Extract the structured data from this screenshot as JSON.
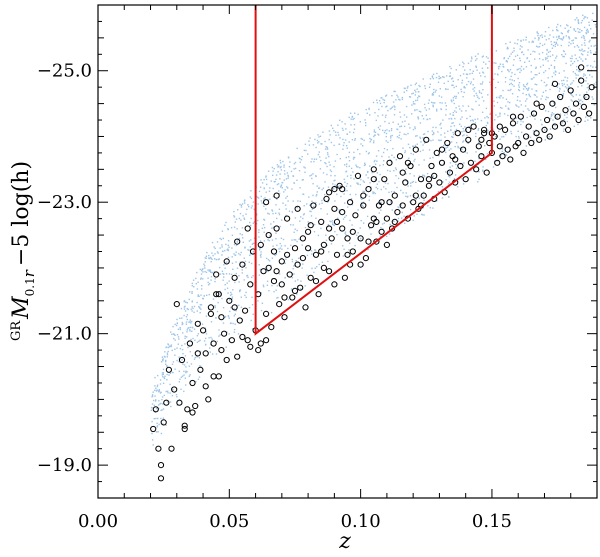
{
  "chart_data": {
    "type": "scatter",
    "xlabel": "z",
    "ylabel": {
      "prefix": "GR",
      "main": "M",
      "subscript": "0.1",
      "subscript_var": "r",
      "suffix": "−5 log(h)"
    },
    "xlim": [
      0.0,
      0.19
    ],
    "ylim": [
      -18.5,
      -26.0
    ],
    "y_inverted": true,
    "x_ticks": [
      0.0,
      0.05,
      0.1,
      0.15
    ],
    "x_tick_labels": [
      "0.00",
      "0.05",
      "0.10",
      "0.15"
    ],
    "y_ticks": [
      -25.0,
      -23.0,
      -21.0,
      -19.0
    ],
    "y_tick_labels": [
      "−25.0",
      "−23.0",
      "−21.0",
      "−19.0"
    ],
    "grid": false,
    "background_sample": {
      "description_color": "#9ec5e8",
      "envelope_z": [
        0.02,
        0.03,
        0.04,
        0.05,
        0.06,
        0.07,
        0.08,
        0.09,
        0.1,
        0.11,
        0.12,
        0.13,
        0.14,
        0.15,
        0.16,
        0.17,
        0.18,
        0.19
      ],
      "faint_limit": [
        -19.2,
        -19.9,
        -20.4,
        -20.8,
        -21.1,
        -21.4,
        -21.7,
        -21.95,
        -22.2,
        -22.45,
        -22.7,
        -22.95,
        -23.2,
        -23.45,
        -23.7,
        -23.9,
        -24.1,
        -24.3
      ],
      "bright_limit": [
        -20.3,
        -21.3,
        -22.2,
        -22.8,
        -23.3,
        -23.7,
        -24.0,
        -24.25,
        -24.45,
        -24.65,
        -24.85,
        -25.0,
        -25.2,
        -25.35,
        -25.5,
        -25.65,
        -25.8,
        -25.95
      ]
    },
    "selection_boundary": {
      "color": "#e01010",
      "points": [
        {
          "z": 0.06,
          "mag": -26.0
        },
        {
          "z": 0.06,
          "mag": -21.0
        },
        {
          "z": 0.15,
          "mag": -23.75
        },
        {
          "z": 0.15,
          "mag": -26.0
        }
      ]
    },
    "galaxy_sample_points": [
      [
        0.021,
        -19.55
      ],
      [
        0.022,
        -19.85
      ],
      [
        0.023,
        -19.25
      ],
      [
        0.024,
        -18.8
      ],
      [
        0.024,
        -19.0
      ],
      [
        0.025,
        -19.65
      ],
      [
        0.026,
        -19.95
      ],
      [
        0.027,
        -20.45
      ],
      [
        0.028,
        -19.25
      ],
      [
        0.029,
        -20.15
      ],
      [
        0.03,
        -21.45
      ],
      [
        0.031,
        -19.95
      ],
      [
        0.032,
        -20.6
      ],
      [
        0.033,
        -19.55
      ],
      [
        0.034,
        -19.85
      ],
      [
        0.035,
        -20.85
      ],
      [
        0.036,
        -20.25
      ],
      [
        0.037,
        -19.9
      ],
      [
        0.038,
        -21.15
      ],
      [
        0.039,
        -20.45
      ],
      [
        0.04,
        -21.05
      ],
      [
        0.041,
        -20.7
      ],
      [
        0.042,
        -20.0
      ],
      [
        0.043,
        -21.4
      ],
      [
        0.044,
        -20.85
      ],
      [
        0.045,
        -21.6
      ],
      [
        0.046,
        -20.35
      ],
      [
        0.047,
        -21.25
      ],
      [
        0.048,
        -21.0
      ],
      [
        0.049,
        -20.6
      ],
      [
        0.05,
        -21.5
      ],
      [
        0.051,
        -20.9
      ],
      [
        0.052,
        -21.85
      ],
      [
        0.053,
        -20.65
      ],
      [
        0.054,
        -21.2
      ],
      [
        0.055,
        -22.05
      ],
      [
        0.056,
        -21.35
      ],
      [
        0.057,
        -20.9
      ],
      [
        0.058,
        -21.75
      ],
      [
        0.059,
        -22.25
      ],
      [
        0.06,
        -21.05
      ],
      [
        0.061,
        -21.6
      ],
      [
        0.062,
        -22.35
      ],
      [
        0.062,
        -20.85
      ],
      [
        0.063,
        -21.95
      ],
      [
        0.064,
        -21.3
      ],
      [
        0.065,
        -22.5
      ],
      [
        0.066,
        -21.1
      ],
      [
        0.067,
        -21.8
      ],
      [
        0.068,
        -22.6
      ],
      [
        0.069,
        -21.45
      ],
      [
        0.07,
        -22.1
      ],
      [
        0.071,
        -21.25
      ],
      [
        0.072,
        -22.75
      ],
      [
        0.073,
        -21.9
      ],
      [
        0.074,
        -21.55
      ],
      [
        0.075,
        -22.3
      ],
      [
        0.076,
        -22.9
      ],
      [
        0.077,
        -21.7
      ],
      [
        0.078,
        -22.15
      ],
      [
        0.079,
        -21.4
      ],
      [
        0.08,
        -22.55
      ],
      [
        0.081,
        -21.85
      ],
      [
        0.082,
        -22.95
      ],
      [
        0.083,
        -22.2
      ],
      [
        0.084,
        -21.6
      ],
      [
        0.085,
        -22.7
      ],
      [
        0.086,
        -22.0
      ],
      [
        0.087,
        -23.05
      ],
      [
        0.088,
        -21.95
      ],
      [
        0.089,
        -22.45
      ],
      [
        0.09,
        -22.9
      ],
      [
        0.091,
        -22.2
      ],
      [
        0.092,
        -23.25
      ],
      [
        0.093,
        -22.6
      ],
      [
        0.094,
        -21.85
      ],
      [
        0.095,
        -22.45
      ],
      [
        0.096,
        -23.0
      ],
      [
        0.097,
        -22.25
      ],
      [
        0.098,
        -22.8
      ],
      [
        0.099,
        -23.4
      ],
      [
        0.1,
        -22.45
      ],
      [
        0.101,
        -22.95
      ],
      [
        0.102,
        -22.15
      ],
      [
        0.103,
        -23.2
      ],
      [
        0.104,
        -22.65
      ],
      [
        0.105,
        -23.5
      ],
      [
        0.106,
        -22.4
      ],
      [
        0.107,
        -22.95
      ],
      [
        0.108,
        -22.55
      ],
      [
        0.109,
        -23.35
      ],
      [
        0.11,
        -22.75
      ],
      [
        0.111,
        -23.6
      ],
      [
        0.112,
        -22.6
      ],
      [
        0.113,
        -23.1
      ],
      [
        0.114,
        -22.85
      ],
      [
        0.115,
        -23.7
      ],
      [
        0.116,
        -22.95
      ],
      [
        0.117,
        -23.3
      ],
      [
        0.118,
        -22.75
      ],
      [
        0.119,
        -23.55
      ],
      [
        0.12,
        -23.0
      ],
      [
        0.121,
        -23.8
      ],
      [
        0.122,
        -22.9
      ],
      [
        0.123,
        -23.35
      ],
      [
        0.124,
        -23.1
      ],
      [
        0.125,
        -23.95
      ],
      [
        0.126,
        -23.25
      ],
      [
        0.127,
        -23.55
      ],
      [
        0.128,
        -23.05
      ],
      [
        0.129,
        -23.75
      ],
      [
        0.13,
        -23.3
      ],
      [
        0.131,
        -23.6
      ],
      [
        0.132,
        -23.15
      ],
      [
        0.133,
        -23.9
      ],
      [
        0.134,
        -23.45
      ],
      [
        0.135,
        -23.7
      ],
      [
        0.136,
        -23.3
      ],
      [
        0.137,
        -24.05
      ],
      [
        0.138,
        -23.55
      ],
      [
        0.139,
        -23.8
      ],
      [
        0.14,
        -23.35
      ],
      [
        0.141,
        -23.95
      ],
      [
        0.142,
        -23.6
      ],
      [
        0.143,
        -24.15
      ],
      [
        0.144,
        -23.5
      ],
      [
        0.145,
        -23.85
      ],
      [
        0.146,
        -23.7
      ],
      [
        0.147,
        -24.05
      ],
      [
        0.148,
        -23.45
      ],
      [
        0.149,
        -23.9
      ],
      [
        0.15,
        -23.75
      ],
      [
        0.151,
        -24.0
      ],
      [
        0.152,
        -23.6
      ],
      [
        0.153,
        -23.85
      ],
      [
        0.154,
        -23.7
      ],
      [
        0.155,
        -24.1
      ],
      [
        0.156,
        -23.8
      ],
      [
        0.157,
        -23.65
      ],
      [
        0.158,
        -24.2
      ],
      [
        0.159,
        -23.85
      ],
      [
        0.16,
        -23.9
      ],
      [
        0.161,
        -24.3
      ],
      [
        0.162,
        -23.75
      ],
      [
        0.163,
        -24.0
      ],
      [
        0.164,
        -24.15
      ],
      [
        0.165,
        -23.9
      ],
      [
        0.166,
        -24.35
      ],
      [
        0.167,
        -24.05
      ],
      [
        0.168,
        -23.95
      ],
      [
        0.169,
        -24.45
      ],
      [
        0.17,
        -24.1
      ],
      [
        0.171,
        -24.25
      ],
      [
        0.172,
        -24.0
      ],
      [
        0.173,
        -24.5
      ],
      [
        0.174,
        -24.15
      ],
      [
        0.175,
        -24.3
      ],
      [
        0.176,
        -24.6
      ],
      [
        0.177,
        -24.2
      ],
      [
        0.178,
        -24.4
      ],
      [
        0.179,
        -24.1
      ],
      [
        0.18,
        -24.7
      ],
      [
        0.181,
        -24.35
      ],
      [
        0.182,
        -24.5
      ],
      [
        0.183,
        -24.25
      ],
      [
        0.184,
        -24.85
      ],
      [
        0.185,
        -24.45
      ],
      [
        0.186,
        -24.6
      ],
      [
        0.187,
        -24.35
      ],
      [
        0.188,
        -24.75
      ],
      [
        0.065,
        -22.0
      ],
      [
        0.07,
        -21.75
      ],
      [
        0.075,
        -21.65
      ],
      [
        0.08,
        -22.3
      ],
      [
        0.085,
        -22.25
      ],
      [
        0.09,
        -21.75
      ],
      [
        0.095,
        -22.2
      ],
      [
        0.1,
        -22.05
      ],
      [
        0.105,
        -22.75
      ],
      [
        0.11,
        -22.35
      ],
      [
        0.068,
        -21.95
      ],
      [
        0.072,
        -22.2
      ],
      [
        0.078,
        -22.45
      ],
      [
        0.083,
        -21.8
      ],
      [
        0.088,
        -22.6
      ],
      [
        0.093,
        -22.85
      ],
      [
        0.097,
        -22.55
      ],
      [
        0.103,
        -22.4
      ],
      [
        0.108,
        -23.0
      ],
      [
        0.113,
        -22.7
      ],
      [
        0.067,
        -22.25
      ],
      [
        0.071,
        -21.55
      ],
      [
        0.076,
        -22.05
      ],
      [
        0.081,
        -22.65
      ],
      [
        0.086,
        -22.35
      ],
      [
        0.091,
        -22.7
      ],
      [
        0.096,
        -22.05
      ],
      [
        0.101,
        -23.1
      ],
      [
        0.106,
        -22.7
      ],
      [
        0.111,
        -23.0
      ],
      [
        0.116,
        -23.45
      ],
      [
        0.121,
        -23.1
      ],
      [
        0.126,
        -23.35
      ],
      [
        0.131,
        -23.8
      ],
      [
        0.136,
        -23.65
      ],
      [
        0.141,
        -24.1
      ],
      [
        0.146,
        -23.95
      ],
      [
        0.118,
        -23.6
      ],
      [
        0.123,
        -22.95
      ],
      [
        0.128,
        -23.4
      ],
      [
        0.09,
        -23.2
      ],
      [
        0.088,
        -23.15
      ],
      [
        0.093,
        -23.2
      ],
      [
        0.105,
        -23.35
      ],
      [
        0.068,
        -23.1
      ],
      [
        0.064,
        -23.0
      ],
      [
        0.057,
        -22.6
      ],
      [
        0.053,
        -22.4
      ],
      [
        0.049,
        -22.1
      ],
      [
        0.045,
        -21.9
      ],
      [
        0.058,
        -20.8
      ],
      [
        0.061,
        -20.75
      ],
      [
        0.064,
        -20.9
      ],
      [
        0.147,
        -24.1
      ],
      [
        0.15,
        -24.05
      ],
      [
        0.153,
        -24.15
      ],
      [
        0.158,
        -24.3
      ],
      [
        0.167,
        -24.5
      ],
      [
        0.184,
        -25.05
      ],
      [
        0.174,
        -24.8
      ],
      [
        0.036,
        -19.8
      ],
      [
        0.033,
        -19.6
      ],
      [
        0.041,
        -20.2
      ],
      [
        0.038,
        -20.7
      ],
      [
        0.044,
        -20.35
      ],
      [
        0.047,
        -20.75
      ],
      [
        0.043,
        -21.3
      ],
      [
        0.046,
        -21.6
      ],
      [
        0.052,
        -21.4
      ],
      [
        0.055,
        -20.95
      ]
    ]
  }
}
